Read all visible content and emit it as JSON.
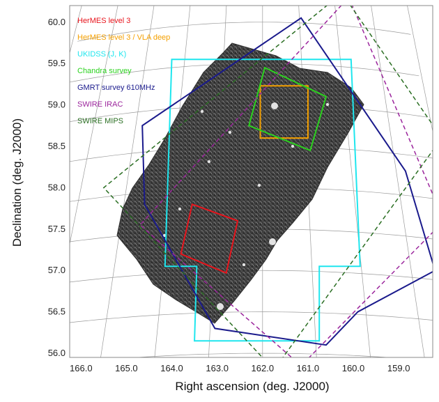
{
  "chart_data": {
    "type": "sky-coverage map (footprint outlines over a greyscale survey image)",
    "xlabel": "Right ascension (deg. J2000)",
    "ylabel": "Declination (deg. J2000)",
    "x_ticks": [
      "166.0",
      "165.0",
      "164.0",
      "163.0",
      "162.0",
      "161.0",
      "160.0",
      "159.0"
    ],
    "y_ticks": [
      "56.0",
      "56.5",
      "57.0",
      "57.5",
      "58.0",
      "58.5",
      "59.0",
      "59.5",
      "60.0"
    ],
    "xlim": [
      166.25,
      158.25
    ],
    "ylim": [
      55.95,
      60.2
    ],
    "x_axis_reversed": true,
    "grid": true,
    "legend_position": "top-left",
    "background_image": "greyscale survey field (Lockman Hole) tilted mosaic",
    "series": [
      {
        "name": "HerMES level 3",
        "color": "#e8141c",
        "style": "solid",
        "footprint": [
          [
            163.55,
            57.8
          ],
          [
            162.55,
            57.6
          ],
          [
            162.8,
            56.97
          ],
          [
            163.8,
            57.2
          ]
        ]
      },
      {
        "name": "HerMES level 3 / VLA deep",
        "color": "#f5a000",
        "style": "solid",
        "footprint": [
          [
            162.05,
            59.23
          ],
          [
            161.0,
            59.23
          ],
          [
            161.0,
            58.6
          ],
          [
            162.05,
            58.6
          ]
        ]
      },
      {
        "name": "UKIDSS (J, K)",
        "color": "#1ee6ee",
        "style": "solid",
        "footprint": [
          [
            164.0,
            59.55
          ],
          [
            160.05,
            59.55
          ],
          [
            159.85,
            57.05
          ],
          [
            160.75,
            57.05
          ],
          [
            160.75,
            56.15
          ],
          [
            163.5,
            56.15
          ],
          [
            163.45,
            57.05
          ],
          [
            164.15,
            57.05
          ]
        ]
      },
      {
        "name": "Chandra survey",
        "color": "#2bd21e",
        "style": "solid",
        "footprint": [
          [
            161.95,
            59.45
          ],
          [
            160.6,
            59.1
          ],
          [
            160.95,
            58.45
          ],
          [
            162.3,
            58.75
          ]
        ]
      },
      {
        "name": "GMRT survey 610MHz",
        "color": "#1a1a8c",
        "style": "solid-dashed",
        "footprint": [
          [
            161.15,
            60.05
          ],
          [
            158.85,
            58.2
          ],
          [
            158.2,
            57.0
          ],
          [
            159.9,
            56.5
          ],
          [
            160.6,
            56.1
          ],
          [
            163.05,
            56.3
          ],
          [
            164.6,
            57.8
          ],
          [
            164.65,
            58.75
          ]
        ]
      },
      {
        "name": "SWIRE IRAC",
        "color": "#9b249c",
        "style": "dashed",
        "footprint": [
          [
            160.1,
            60.3
          ],
          [
            158.0,
            57.6
          ],
          [
            161.15,
            55.85
          ],
          [
            164.7,
            57.55
          ]
        ]
      },
      {
        "name": "SWIRE MIPS",
        "color": "#2a6e22",
        "style": "dashed",
        "footprint": [
          [
            160.25,
            60.35
          ],
          [
            158.05,
            58.6
          ],
          [
            161.75,
            55.8
          ],
          [
            165.5,
            58.0
          ]
        ]
      }
    ]
  }
}
